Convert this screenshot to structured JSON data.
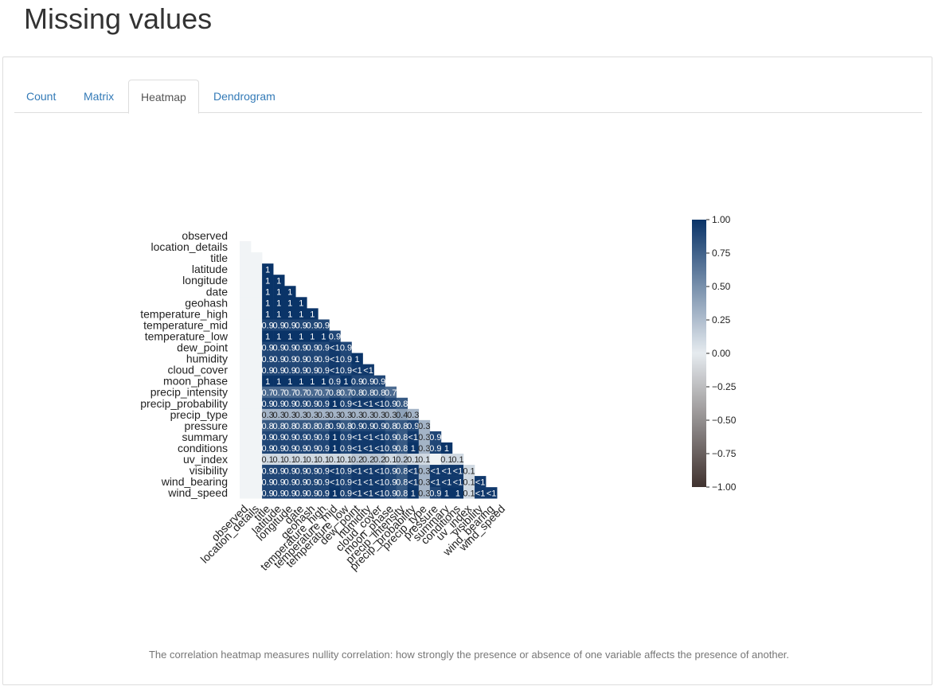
{
  "page": {
    "title": "Missing values"
  },
  "tabs": [
    {
      "label": "Count",
      "active": false
    },
    {
      "label": "Matrix",
      "active": false
    },
    {
      "label": "Heatmap",
      "active": true
    },
    {
      "label": "Dendrogram",
      "active": false
    }
  ],
  "caption": "The correlation heatmap measures nullity correlation: how strongly the presence or absence of one variable affects the presence of another.",
  "colors": {
    "tab_link": "#337ab7",
    "colormap_low": "#40322f",
    "colormap_mid": "#e6ebef",
    "colormap_high": "#0a3468",
    "near_zero_band": "#f1f4f6"
  },
  "chart_data": {
    "type": "heatmap",
    "title": "",
    "variables": [
      "observed",
      "location_details",
      "title",
      "latitude",
      "longitude",
      "date",
      "geohash",
      "temperature_high",
      "temperature_mid",
      "temperature_low",
      "dew_point",
      "humidity",
      "cloud_cover",
      "moon_phase",
      "precip_intensity",
      "precip_probability",
      "precip_type",
      "pressure",
      "summary",
      "conditions",
      "uv_index",
      "visibility",
      "wind_bearing",
      "wind_speed"
    ],
    "lower_triangle_labels": [
      [],
      [],
      [],
      [
        "",
        "",
        "1"
      ],
      [
        "",
        "",
        "1",
        "1"
      ],
      [
        "",
        "",
        "1",
        "1",
        "1"
      ],
      [
        "",
        "",
        "1",
        "1",
        "1",
        "1"
      ],
      [
        "",
        "",
        "1",
        "1",
        "1",
        "1",
        "1"
      ],
      [
        "",
        "",
        "0.9",
        "0.9",
        "0.9",
        "0.9",
        "0.9",
        "0.9"
      ],
      [
        "",
        "",
        "1",
        "1",
        "1",
        "1",
        "1",
        "1",
        "0.9"
      ],
      [
        "",
        "",
        "0.9",
        "0.9",
        "0.9",
        "0.9",
        "0.9",
        "0.9",
        "<1",
        "0.9"
      ],
      [
        "",
        "",
        "0.9",
        "0.9",
        "0.9",
        "0.9",
        "0.9",
        "0.9",
        "<1",
        "0.9",
        "1"
      ],
      [
        "",
        "",
        "0.9",
        "0.9",
        "0.9",
        "0.9",
        "0.9",
        "0.9",
        "<1",
        "0.9",
        "<1",
        "<1"
      ],
      [
        "",
        "",
        "1",
        "1",
        "1",
        "1",
        "1",
        "1",
        "0.9",
        "1",
        "0.9",
        "0.9",
        "0.9"
      ],
      [
        "",
        "",
        "0.7",
        "0.7",
        "0.7",
        "0.7",
        "0.7",
        "0.7",
        "0.8",
        "0.7",
        "0.8",
        "0.8",
        "0.8",
        "0.7"
      ],
      [
        "",
        "",
        "0.9",
        "0.9",
        "0.9",
        "0.9",
        "0.9",
        "0.9",
        "1",
        "0.9",
        "<1",
        "<1",
        "<1",
        "0.9",
        "0.8"
      ],
      [
        "",
        "",
        "0.3",
        "0.3",
        "0.3",
        "0.3",
        "0.3",
        "0.3",
        "0.3",
        "0.3",
        "0.3",
        "0.3",
        "0.3",
        "0.3",
        "0.4",
        "0.3"
      ],
      [
        "",
        "",
        "0.8",
        "0.8",
        "0.8",
        "0.8",
        "0.8",
        "0.8",
        "0.9",
        "0.8",
        "0.9",
        "0.9",
        "0.9",
        "0.8",
        "0.8",
        "0.9",
        "0.3"
      ],
      [
        "",
        "",
        "0.9",
        "0.9",
        "0.9",
        "0.9",
        "0.9",
        "0.9",
        "1",
        "0.9",
        "<1",
        "<1",
        "<1",
        "0.9",
        "0.8",
        "<1",
        "0.3",
        "0.9"
      ],
      [
        "",
        "",
        "0.9",
        "0.9",
        "0.9",
        "0.9",
        "0.9",
        "0.9",
        "1",
        "0.9",
        "<1",
        "<1",
        "<1",
        "0.9",
        "0.8",
        "1",
        "0.3",
        "0.9",
        "1"
      ],
      [
        "",
        "",
        "0.1",
        "0.1",
        "0.1",
        "0.1",
        "0.1",
        "0.1",
        "0.1",
        "0.1",
        "0.2",
        "0.2",
        "0.2",
        "0.1",
        "0.2",
        "0.1",
        "0.1",
        "",
        "0.1",
        "0.1"
      ],
      [
        "",
        "",
        "0.9",
        "0.9",
        "0.9",
        "0.9",
        "0.9",
        "0.9",
        "<1",
        "0.9",
        "<1",
        "<1",
        "<1",
        "0.9",
        "0.8",
        "<1",
        "0.3",
        "<1",
        "<1",
        "<1",
        "0.1"
      ],
      [
        "",
        "",
        "0.9",
        "0.9",
        "0.9",
        "0.9",
        "0.9",
        "0.9",
        "<1",
        "0.9",
        "<1",
        "<1",
        "<1",
        "0.9",
        "0.8",
        "<1",
        "0.3",
        "<1",
        "<1",
        "<1",
        "0.1",
        "<1"
      ],
      [
        "",
        "",
        "0.9",
        "0.9",
        "0.9",
        "0.9",
        "0.9",
        "0.9",
        "1",
        "0.9",
        "<1",
        "<1",
        "<1",
        "0.9",
        "0.8",
        "1",
        "0.3",
        "0.9",
        "1",
        "1",
        "0.1",
        "<1",
        "<1"
      ]
    ],
    "colorbar": {
      "range": [
        -1,
        1
      ],
      "ticks": [
        "1.00",
        "0.75",
        "0.50",
        "0.25",
        "0.00",
        "−0.25",
        "−0.50",
        "−0.75",
        "−1.00"
      ]
    },
    "xlabel": "",
    "ylabel": "",
    "grid": false
  }
}
